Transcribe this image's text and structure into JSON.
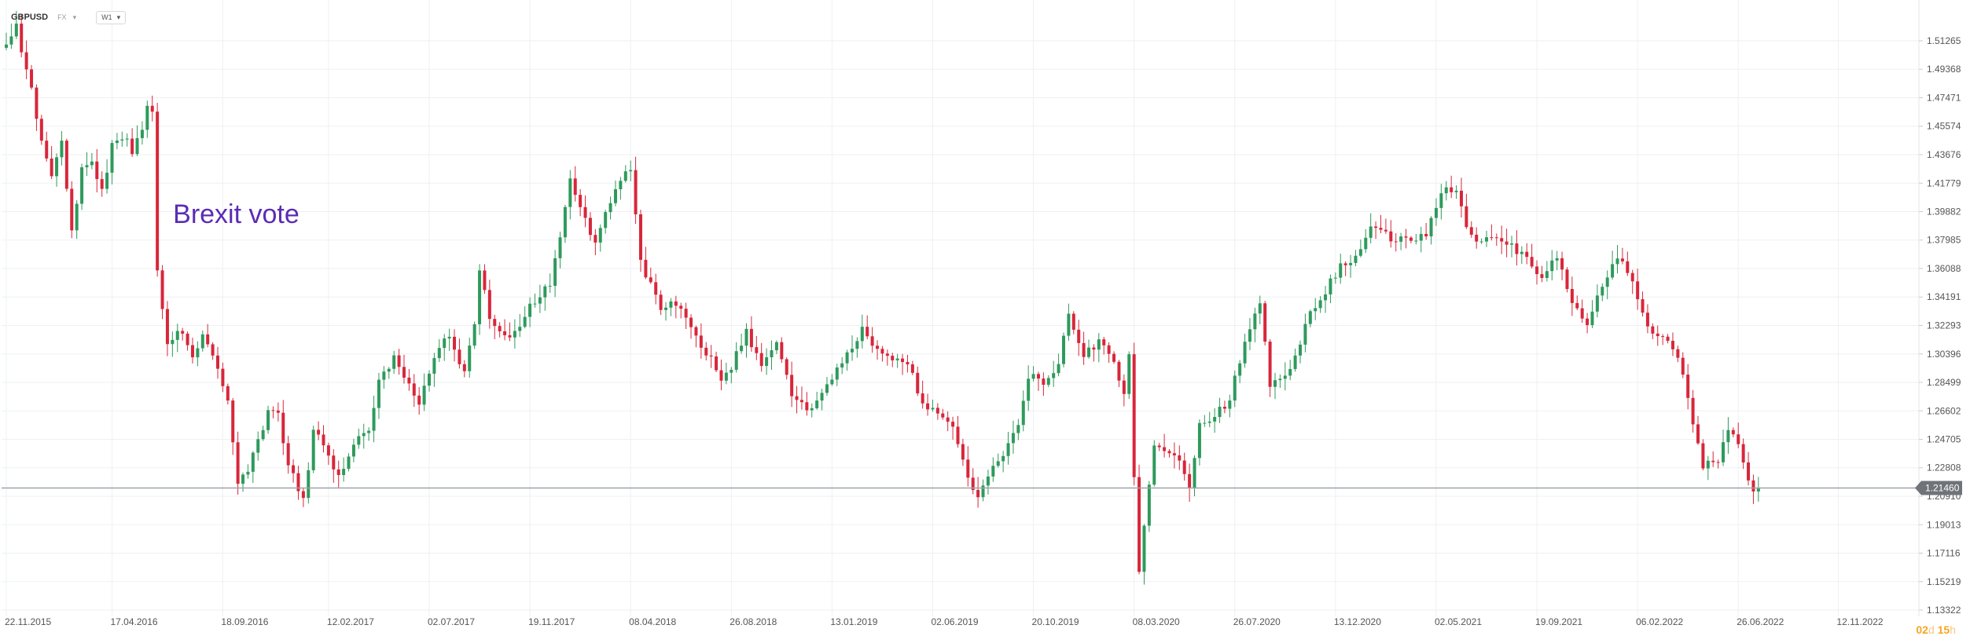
{
  "toolbar": {
    "symbol": "GBPUSD",
    "market": "FX",
    "timeframe": "W1",
    "icons": [
      "chevron-down-icon"
    ]
  },
  "annotation": {
    "text": "Brexit vote",
    "color": "#5b2bb5"
  },
  "countdown": {
    "days": "02",
    "days_unit": "d",
    "hours": "15",
    "hours_unit": "h"
  },
  "colors": {
    "up": "#2e9a5c",
    "down": "#d8263a",
    "grid": "#eef0f2",
    "current_price_line": "#9ea3a8",
    "current_price_badge": "#6f7479",
    "accent": "#f5a623"
  },
  "chart_data": {
    "type": "candlestick",
    "symbol": "GBPUSD",
    "timeframe": "W1",
    "grid": true,
    "y_axis": {
      "position": "right",
      "range": [
        1.1332,
        1.5292
      ],
      "ticks": [
        "1.51265",
        "1.49368",
        "1.47471",
        "1.45574",
        "1.43676",
        "1.41779",
        "1.39882",
        "1.37985",
        "1.36088",
        "1.34191",
        "1.32293",
        "1.30396",
        "1.28499",
        "1.26602",
        "1.24705",
        "1.22808",
        "1.20910",
        "1.19013",
        "1.17116",
        "1.15219",
        "1.13322"
      ]
    },
    "x_axis": {
      "start": "2015-11-22",
      "end": "2022-12-22",
      "ticks": [
        "22.11.2015",
        "17.04.2016",
        "18.09.2016",
        "12.02.2017",
        "02.07.2017",
        "19.11.2017",
        "08.04.2018",
        "26.08.2018",
        "13.01.2019",
        "02.06.2019",
        "20.10.2019",
        "08.03.2020",
        "26.07.2020",
        "13.12.2020",
        "02.05.2021",
        "19.09.2021",
        "06.02.2022",
        "26.06.2022",
        "12.11.2022"
      ]
    },
    "current_price": 1.2146,
    "current_price_label": "1.21460",
    "annotations": [
      {
        "text": "Brexit vote",
        "date": "2016-06-19"
      }
    ],
    "price_path": [
      [
        "2015-11-22",
        1.508
      ],
      [
        "2015-12-13",
        1.522
      ],
      [
        "2015-12-27",
        1.494
      ],
      [
        "2016-01-17",
        1.448
      ],
      [
        "2016-01-31",
        1.424
      ],
      [
        "2016-02-14",
        1.446
      ],
      [
        "2016-02-28",
        1.384
      ],
      [
        "2016-03-13",
        1.426
      ],
      [
        "2016-03-27",
        1.432
      ],
      [
        "2016-04-10",
        1.412
      ],
      [
        "2016-04-24",
        1.442
      ],
      [
        "2016-05-08",
        1.449
      ],
      [
        "2016-05-22",
        1.44
      ],
      [
        "2016-06-05",
        1.452
      ],
      [
        "2016-06-12",
        1.468
      ],
      [
        "2016-06-19",
        1.468
      ],
      [
        "2016-06-26",
        1.358
      ],
      [
        "2016-07-10",
        1.31
      ],
      [
        "2016-07-24",
        1.322
      ],
      [
        "2016-08-14",
        1.303
      ],
      [
        "2016-08-28",
        1.318
      ],
      [
        "2016-09-18",
        1.295
      ],
      [
        "2016-10-02",
        1.274
      ],
      [
        "2016-10-09",
        1.243
      ],
      [
        "2016-10-16",
        1.218
      ],
      [
        "2016-10-30",
        1.228
      ],
      [
        "2016-11-13",
        1.245
      ],
      [
        "2016-11-27",
        1.265
      ],
      [
        "2016-12-11",
        1.262
      ],
      [
        "2016-12-25",
        1.232
      ],
      [
        "2017-01-15",
        1.205
      ],
      [
        "2017-01-29",
        1.252
      ],
      [
        "2017-02-12",
        1.243
      ],
      [
        "2017-03-05",
        1.222
      ],
      [
        "2017-03-26",
        1.245
      ],
      [
        "2017-04-16",
        1.255
      ],
      [
        "2017-04-30",
        1.284
      ],
      [
        "2017-05-21",
        1.301
      ],
      [
        "2017-06-04",
        1.289
      ],
      [
        "2017-06-25",
        1.272
      ],
      [
        "2017-07-16",
        1.302
      ],
      [
        "2017-08-06",
        1.318
      ],
      [
        "2017-08-27",
        1.29
      ],
      [
        "2017-09-10",
        1.324
      ],
      [
        "2017-09-17",
        1.358
      ],
      [
        "2017-10-01",
        1.33
      ],
      [
        "2017-10-22",
        1.314
      ],
      [
        "2017-11-12",
        1.325
      ],
      [
        "2017-12-03",
        1.34
      ],
      [
        "2017-12-24",
        1.352
      ],
      [
        "2018-01-07",
        1.38
      ],
      [
        "2018-01-21",
        1.42
      ],
      [
        "2018-02-11",
        1.392
      ],
      [
        "2018-02-25",
        1.378
      ],
      [
        "2018-03-18",
        1.405
      ],
      [
        "2018-04-01",
        1.42
      ],
      [
        "2018-04-15",
        1.428
      ],
      [
        "2018-04-29",
        1.365
      ],
      [
        "2018-05-13",
        1.35
      ],
      [
        "2018-05-27",
        1.332
      ],
      [
        "2018-06-17",
        1.338
      ],
      [
        "2018-07-08",
        1.322
      ],
      [
        "2018-08-05",
        1.3
      ],
      [
        "2018-08-19",
        1.285
      ],
      [
        "2018-09-02",
        1.296
      ],
      [
        "2018-09-23",
        1.318
      ],
      [
        "2018-10-14",
        1.297
      ],
      [
        "2018-11-04",
        1.31
      ],
      [
        "2018-11-25",
        1.278
      ],
      [
        "2018-12-16",
        1.265
      ],
      [
        "2018-12-30",
        1.272
      ],
      [
        "2019-01-20",
        1.289
      ],
      [
        "2019-02-10",
        1.305
      ],
      [
        "2019-03-03",
        1.32
      ],
      [
        "2019-03-24",
        1.305
      ],
      [
        "2019-04-14",
        1.302
      ],
      [
        "2019-05-12",
        1.292
      ],
      [
        "2019-05-26",
        1.268
      ],
      [
        "2019-06-16",
        1.265
      ],
      [
        "2019-07-07",
        1.254
      ],
      [
        "2019-07-28",
        1.222
      ],
      [
        "2019-08-11",
        1.206
      ],
      [
        "2019-08-25",
        1.225
      ],
      [
        "2019-09-15",
        1.235
      ],
      [
        "2019-10-06",
        1.255
      ],
      [
        "2019-10-20",
        1.29
      ],
      [
        "2019-11-10",
        1.285
      ],
      [
        "2019-12-01",
        1.298
      ],
      [
        "2019-12-15",
        1.332
      ],
      [
        "2020-01-05",
        1.302
      ],
      [
        "2020-01-26",
        1.312
      ],
      [
        "2020-02-16",
        1.298
      ],
      [
        "2020-03-01",
        1.278
      ],
      [
        "2020-03-08",
        1.305
      ],
      [
        "2020-03-15",
        1.219
      ],
      [
        "2020-03-22",
        1.16
      ],
      [
        "2020-04-12",
        1.245
      ],
      [
        "2020-05-10",
        1.238
      ],
      [
        "2020-05-31",
        1.215
      ],
      [
        "2020-06-14",
        1.256
      ],
      [
        "2020-07-05",
        1.262
      ],
      [
        "2020-07-26",
        1.274
      ],
      [
        "2020-08-16",
        1.312
      ],
      [
        "2020-09-06",
        1.338
      ],
      [
        "2020-09-20",
        1.285
      ],
      [
        "2020-10-11",
        1.29
      ],
      [
        "2020-10-25",
        1.302
      ],
      [
        "2020-11-15",
        1.332
      ],
      [
        "2020-12-06",
        1.346
      ],
      [
        "2020-12-27",
        1.362
      ],
      [
        "2021-01-17",
        1.368
      ],
      [
        "2021-02-07",
        1.39
      ],
      [
        "2021-02-21",
        1.385
      ],
      [
        "2021-03-14",
        1.38
      ],
      [
        "2021-04-04",
        1.378
      ],
      [
        "2021-04-25",
        1.385
      ],
      [
        "2021-05-16",
        1.412
      ],
      [
        "2021-06-06",
        1.415
      ],
      [
        "2021-06-20",
        1.388
      ],
      [
        "2021-07-11",
        1.378
      ],
      [
        "2021-08-01",
        1.384
      ],
      [
        "2021-08-22",
        1.375
      ],
      [
        "2021-09-12",
        1.37
      ],
      [
        "2021-10-03",
        1.352
      ],
      [
        "2021-10-24",
        1.37
      ],
      [
        "2021-11-14",
        1.34
      ],
      [
        "2021-12-05",
        1.323
      ],
      [
        "2021-12-26",
        1.35
      ],
      [
        "2022-01-16",
        1.368
      ],
      [
        "2022-02-06",
        1.352
      ],
      [
        "2022-02-27",
        1.32
      ],
      [
        "2022-03-20",
        1.315
      ],
      [
        "2022-04-10",
        1.304
      ],
      [
        "2022-05-01",
        1.26
      ],
      [
        "2022-05-15",
        1.23
      ],
      [
        "2022-06-05",
        1.232
      ],
      [
        "2022-06-19",
        1.253
      ],
      [
        "2022-07-03",
        1.244
      ],
      [
        "2022-07-17",
        1.219
      ],
      [
        "2022-07-24",
        1.2146
      ]
    ]
  }
}
